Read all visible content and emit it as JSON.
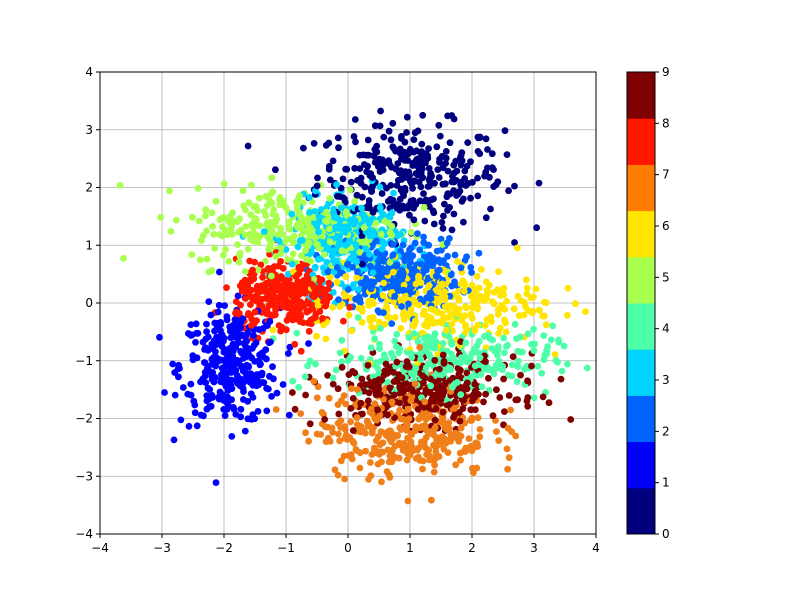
{
  "chart_data": {
    "type": "scatter",
    "title": "",
    "xlabel": "",
    "ylabel": "",
    "xlim": [
      -4,
      4
    ],
    "ylim": [
      -4,
      4
    ],
    "xticks": [
      -4,
      -3,
      -2,
      -1,
      0,
      1,
      2,
      3,
      4
    ],
    "yticks": [
      -4,
      -3,
      -2,
      -1,
      0,
      1,
      2,
      3,
      4
    ],
    "xtick_labels": [
      "−4",
      "−3",
      "−2",
      "−1",
      "0",
      "1",
      "2",
      "3",
      "4"
    ],
    "ytick_labels": [
      "−4",
      "−3",
      "−2",
      "−1",
      "0",
      "1",
      "2",
      "3",
      "4"
    ],
    "grid": true,
    "colormap": "jet",
    "colorbar": {
      "min": 0,
      "max": 9,
      "ticks": [
        0,
        1,
        2,
        3,
        4,
        5,
        6,
        7,
        8,
        9
      ],
      "tick_labels": [
        "0",
        "1",
        "2",
        "3",
        "4",
        "5",
        "6",
        "7",
        "8",
        "9"
      ],
      "colors": [
        "#00007f",
        "#0000ff",
        "#0063ff",
        "#00d5ff",
        "#4effa9",
        "#a9ff4e",
        "#ffe500",
        "#ff7c00",
        "#ff1700",
        "#7f0000"
      ]
    },
    "clusters": [
      {
        "label": 0,
        "color": "#00007f",
        "center": [
          1.0,
          2.2
        ],
        "spread": [
          0.75,
          0.45
        ],
        "count": 320
      },
      {
        "label": 1,
        "color": "#0000ff",
        "center": [
          -1.9,
          -1.1
        ],
        "spread": [
          0.4,
          0.5
        ],
        "count": 330
      },
      {
        "label": 2,
        "color": "#0063ff",
        "center": [
          0.8,
          0.5
        ],
        "spread": [
          0.5,
          0.3
        ],
        "count": 330
      },
      {
        "label": 3,
        "color": "#00d5ff",
        "center": [
          0.0,
          1.1
        ],
        "spread": [
          0.45,
          0.35
        ],
        "count": 320
      },
      {
        "label": 4,
        "color": "#4effa9",
        "center": [
          1.5,
          -1.0
        ],
        "spread": [
          0.9,
          0.3
        ],
        "count": 300
      },
      {
        "label": 5,
        "color": "#a9ff4e",
        "center": [
          -0.8,
          1.3
        ],
        "spread": [
          0.85,
          0.35
        ],
        "count": 320
      },
      {
        "label": 6,
        "color": "#ffe500",
        "center": [
          1.3,
          0.0
        ],
        "spread": [
          0.9,
          0.35
        ],
        "count": 330
      },
      {
        "label": 7,
        "color": "#f07f1a",
        "center": [
          0.9,
          -2.2
        ],
        "spread": [
          0.7,
          0.4
        ],
        "count": 340
      },
      {
        "label": 8,
        "color": "#ff1700",
        "center": [
          -1.0,
          0.1
        ],
        "spread": [
          0.4,
          0.3
        ],
        "count": 320
      },
      {
        "label": 9,
        "color": "#7f0000",
        "center": [
          1.2,
          -1.5
        ],
        "spread": [
          0.75,
          0.3
        ],
        "count": 320
      }
    ]
  }
}
